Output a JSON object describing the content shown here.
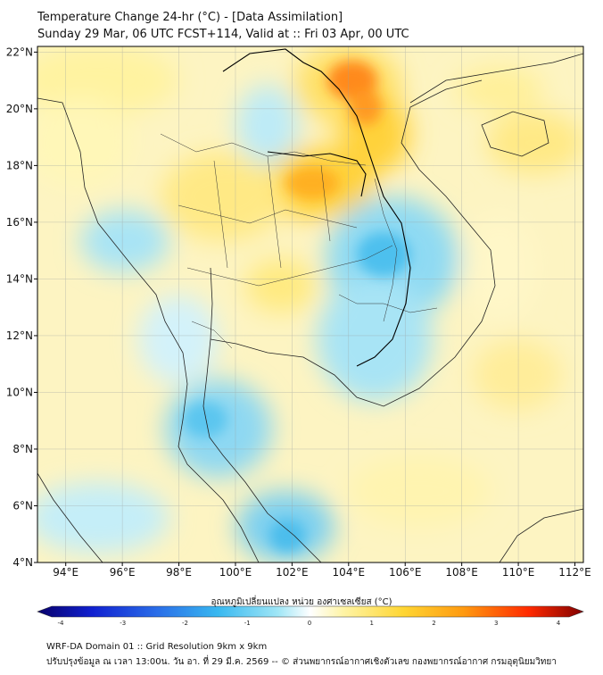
{
  "header": {
    "title": "Temperature Change 24-hr (°C) - [Data Assimilation]",
    "subtitle": "Sunday 29 Mar, 06 UTC FCST+114, Valid at :: Fri 03 Apr, 00 UTC"
  },
  "map": {
    "lat_labels": [
      "22°N",
      "20°N",
      "18°N",
      "16°N",
      "14°N",
      "12°N",
      "10°N",
      "8°N",
      "6°N",
      "4°N"
    ],
    "lon_labels": [
      "94°E",
      "96°E",
      "98°E",
      "100°E",
      "102°E",
      "104°E",
      "106°E",
      "108°E",
      "110°E",
      "112°E"
    ],
    "extent": {
      "lon_min": 93,
      "lon_max": 112.3,
      "lat_min": 4,
      "lat_max": 22.2
    }
  },
  "colorbar": {
    "label": "อุณหภูมิเปลี่ยนแปลง หน่วย องศาเซลเซียส (°C)",
    "ticks": [
      "-4",
      "-3",
      "-2",
      "-1",
      "0",
      "1",
      "2",
      "3",
      "4"
    ],
    "min": -4,
    "max": 4,
    "colors": [
      "#08006a",
      "#1020d0",
      "#2a6ee8",
      "#38b8f0",
      "#9fe6f6",
      "#ffffff",
      "#fff4a6",
      "#ffd633",
      "#ff9a10",
      "#ff2a00",
      "#800000"
    ]
  },
  "footer": {
    "line1": "WRF-DA Domain 01 :: Grid Resolution 9km x 9km",
    "line2": "ปรับปรุงข้อมูล ณ เวลา 13:00น. วัน อา. ที่ 29 มี.ค. 2569 -- © ส่วนพยากรณ์อากาศเชิงตัวเลข กองพยากรณ์อากาศ กรมอุตุนิยมวิทยา"
  }
}
